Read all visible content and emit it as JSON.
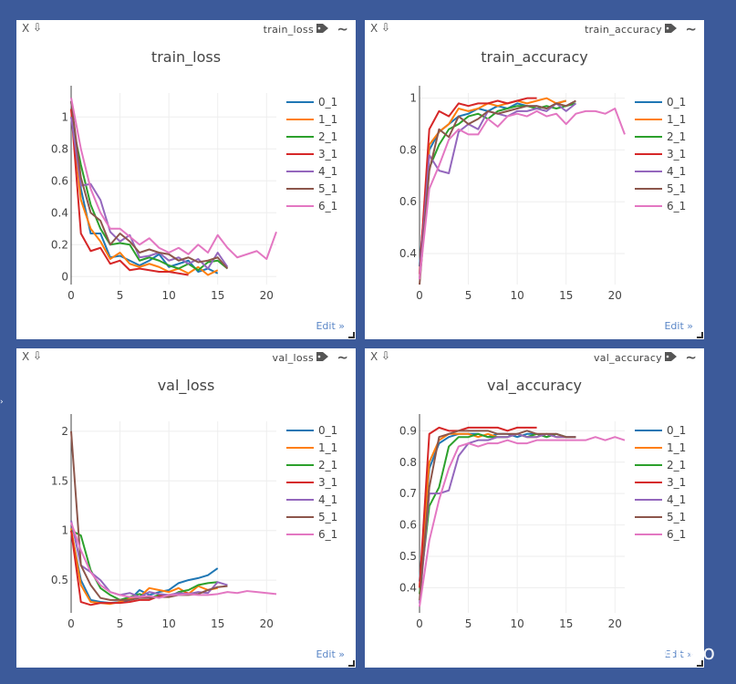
{
  "edit_label": "Edit »",
  "watermark": "知乎 @lego",
  "icons": {
    "close": "close-icon",
    "download": "download-arrow-icon",
    "tag": "tag-icon",
    "wave": "wave-icon"
  },
  "series_colors": [
    "#1f77b4",
    "#ff7f0e",
    "#2ca02c",
    "#d62728",
    "#9467bd",
    "#8c564b",
    "#e377c2"
  ],
  "chart_data": [
    {
      "window_title": "train_loss",
      "type": "line",
      "title": "train_loss",
      "xlim": [
        0,
        21
      ],
      "ylim": [
        -0.05,
        1.15
      ],
      "xticks": [
        "0",
        "5",
        "10",
        "15",
        "20"
      ],
      "xtick_values": [
        0,
        5,
        10,
        15,
        20
      ],
      "yticks": [
        "0",
        "0.2",
        "0.4",
        "0.6",
        "0.8",
        "1"
      ],
      "ytick_values": [
        0,
        0.2,
        0.4,
        0.6,
        0.8,
        1
      ],
      "series": [
        {
          "name": "0_1",
          "values": [
            1.1,
            0.55,
            0.27,
            0.27,
            0.12,
            0.13,
            0.1,
            0.07,
            0.1,
            0.14,
            0.06,
            0.08,
            0.1,
            0.03,
            0.05,
            0.02
          ]
        },
        {
          "name": "1_1",
          "values": [
            1.05,
            0.48,
            0.3,
            0.22,
            0.11,
            0.15,
            0.08,
            0.06,
            0.08,
            0.06,
            0.03,
            0.05,
            0.02,
            0.06,
            0.01,
            0.04
          ]
        },
        {
          "name": "2_1",
          "values": [
            1.0,
            0.7,
            0.45,
            0.3,
            0.2,
            0.21,
            0.2,
            0.1,
            0.12,
            0.1,
            0.07,
            0.05,
            0.08,
            0.04,
            0.09,
            0.1,
            0.05
          ]
        },
        {
          "name": "3_1",
          "values": [
            1.05,
            0.27,
            0.16,
            0.18,
            0.08,
            0.1,
            0.04,
            0.05,
            0.04,
            0.03,
            0.03,
            0.02,
            0.01
          ]
        },
        {
          "name": "4_1",
          "values": [
            1.0,
            0.57,
            0.58,
            0.48,
            0.28,
            0.22,
            0.26,
            0.12,
            0.13,
            0.15,
            0.1,
            0.12,
            0.08,
            0.11,
            0.05,
            0.15,
            0.06
          ]
        },
        {
          "name": "5_1",
          "values": [
            1.1,
            0.62,
            0.4,
            0.35,
            0.2,
            0.27,
            0.22,
            0.15,
            0.17,
            0.15,
            0.14,
            0.1,
            0.12,
            0.09,
            0.1,
            0.12,
            0.05
          ]
        },
        {
          "name": "6_1",
          "values": [
            1.12,
            0.8,
            0.55,
            0.4,
            0.3,
            0.3,
            0.25,
            0.2,
            0.24,
            0.18,
            0.15,
            0.18,
            0.14,
            0.2,
            0.15,
            0.26,
            0.18,
            0.12,
            0.14,
            0.16,
            0.11,
            0.28
          ]
        }
      ]
    },
    {
      "window_title": "train_accuracy",
      "type": "line",
      "title": "train_accuracy",
      "xlim": [
        0,
        21
      ],
      "ylim": [
        0.28,
        1.02
      ],
      "xticks": [
        "0",
        "5",
        "10",
        "15",
        "20"
      ],
      "xtick_values": [
        0,
        5,
        10,
        15,
        20
      ],
      "yticks": [
        "0.4",
        "0.6",
        "0.8",
        "1"
      ],
      "ytick_values": [
        0.4,
        0.6,
        0.8,
        1
      ],
      "series": [
        {
          "name": "0_1",
          "values": [
            0.35,
            0.8,
            0.87,
            0.9,
            0.93,
            0.94,
            0.96,
            0.95,
            0.97,
            0.96,
            0.98,
            0.97,
            0.97,
            0.96,
            0.98,
            0.99
          ]
        },
        {
          "name": "1_1",
          "values": [
            0.3,
            0.82,
            0.87,
            0.9,
            0.96,
            0.95,
            0.96,
            0.98,
            0.97,
            0.98,
            0.99,
            0.98,
            0.99,
            1.0,
            0.98,
            0.99
          ]
        },
        {
          "name": "2_1",
          "values": [
            0.3,
            0.73,
            0.82,
            0.88,
            0.9,
            0.93,
            0.94,
            0.92,
            0.95,
            0.96,
            0.97,
            0.97,
            0.96,
            0.97,
            0.96,
            0.97,
            0.98
          ]
        },
        {
          "name": "3_1",
          "values": [
            0.32,
            0.88,
            0.95,
            0.93,
            0.98,
            0.97,
            0.98,
            0.98,
            0.99,
            0.98,
            0.99,
            1.0,
            1.0
          ]
        },
        {
          "name": "4_1",
          "values": [
            0.3,
            0.78,
            0.72,
            0.71,
            0.87,
            0.9,
            0.88,
            0.95,
            0.94,
            0.93,
            0.95,
            0.95,
            0.96,
            0.95,
            0.98,
            0.95,
            0.98
          ]
        },
        {
          "name": "5_1",
          "values": [
            0.28,
            0.72,
            0.88,
            0.85,
            0.93,
            0.9,
            0.92,
            0.95,
            0.94,
            0.95,
            0.96,
            0.97,
            0.97,
            0.96,
            0.98,
            0.97,
            0.99
          ]
        },
        {
          "name": "6_1",
          "values": [
            0.3,
            0.65,
            0.74,
            0.84,
            0.88,
            0.86,
            0.86,
            0.92,
            0.89,
            0.93,
            0.94,
            0.93,
            0.95,
            0.93,
            0.94,
            0.9,
            0.94,
            0.95,
            0.95,
            0.94,
            0.96,
            0.86
          ]
        }
      ]
    },
    {
      "window_title": "val_loss",
      "type": "line",
      "title": "val_loss",
      "xlim": [
        0,
        21
      ],
      "ylim": [
        0.17,
        2.1
      ],
      "xticks": [
        "0",
        "5",
        "10",
        "15",
        "20"
      ],
      "xtick_values": [
        0,
        5,
        10,
        15,
        20
      ],
      "yticks": [
        "0.5",
        "1",
        "1.5",
        "2"
      ],
      "ytick_values": [
        0.5,
        1,
        1.5,
        2
      ],
      "series": [
        {
          "name": "0_1",
          "values": [
            1.0,
            0.5,
            0.3,
            0.28,
            0.27,
            0.28,
            0.3,
            0.4,
            0.35,
            0.38,
            0.4,
            0.47,
            0.5,
            0.52,
            0.55,
            0.62
          ]
        },
        {
          "name": "1_1",
          "values": [
            1.02,
            0.45,
            0.28,
            0.27,
            0.26,
            0.28,
            0.32,
            0.33,
            0.42,
            0.4,
            0.38,
            0.42,
            0.36,
            0.44,
            0.4,
            0.42
          ]
        },
        {
          "name": "2_1",
          "values": [
            1.0,
            0.95,
            0.6,
            0.42,
            0.35,
            0.3,
            0.33,
            0.36,
            0.32,
            0.35,
            0.33,
            0.38,
            0.4,
            0.45,
            0.47,
            0.48
          ]
        },
        {
          "name": "3_1",
          "values": [
            1.0,
            0.28,
            0.25,
            0.27,
            0.27,
            0.27,
            0.28,
            0.3,
            0.3,
            0.34,
            0.35,
            0.36,
            0.37
          ]
        },
        {
          "name": "4_1",
          "values": [
            1.1,
            0.65,
            0.58,
            0.5,
            0.38,
            0.35,
            0.37,
            0.33,
            0.38,
            0.36,
            0.35,
            0.37,
            0.36,
            0.38,
            0.37,
            0.48,
            0.45
          ]
        },
        {
          "name": "5_1",
          "values": [
            2.0,
            0.65,
            0.45,
            0.32,
            0.3,
            0.3,
            0.3,
            0.32,
            0.32,
            0.33,
            0.33,
            0.35,
            0.35,
            0.36,
            0.4,
            0.43,
            0.44
          ]
        },
        {
          "name": "6_1",
          "values": [
            1.08,
            0.8,
            0.58,
            0.45,
            0.38,
            0.35,
            0.33,
            0.33,
            0.34,
            0.32,
            0.35,
            0.35,
            0.36,
            0.35,
            0.35,
            0.36,
            0.38,
            0.37,
            0.39,
            0.38,
            0.37,
            0.36
          ]
        }
      ]
    },
    {
      "window_title": "val_accuracy",
      "type": "line",
      "title": "val_accuracy",
      "xlim": [
        0,
        21
      ],
      "ylim": [
        0.32,
        0.93
      ],
      "xticks": [
        "0",
        "5",
        "10",
        "15",
        "20"
      ],
      "xtick_values": [
        0,
        5,
        10,
        15,
        20
      ],
      "yticks": [
        "0.4",
        "0.5",
        "0.6",
        "0.7",
        "0.8",
        "0.9"
      ],
      "ytick_values": [
        0.4,
        0.5,
        0.6,
        0.7,
        0.8,
        0.9
      ],
      "series": [
        {
          "name": "0_1",
          "values": [
            0.42,
            0.78,
            0.86,
            0.88,
            0.89,
            0.89,
            0.89,
            0.88,
            0.89,
            0.89,
            0.88,
            0.89,
            0.89,
            0.88,
            0.89,
            0.88,
            0.88
          ]
        },
        {
          "name": "1_1",
          "values": [
            0.4,
            0.8,
            0.87,
            0.89,
            0.89,
            0.89,
            0.88,
            0.89,
            0.88,
            0.88,
            0.89,
            0.88,
            0.88,
            0.89,
            0.88,
            0.88
          ]
        },
        {
          "name": "2_1",
          "values": [
            0.38,
            0.66,
            0.72,
            0.85,
            0.88,
            0.88,
            0.89,
            0.88,
            0.88,
            0.88,
            0.89,
            0.88,
            0.89,
            0.88,
            0.89,
            0.88
          ]
        },
        {
          "name": "3_1",
          "values": [
            0.4,
            0.89,
            0.91,
            0.9,
            0.9,
            0.91,
            0.91,
            0.91,
            0.91,
            0.9,
            0.91,
            0.91,
            0.91
          ]
        },
        {
          "name": "4_1",
          "values": [
            0.35,
            0.7,
            0.7,
            0.71,
            0.82,
            0.86,
            0.87,
            0.87,
            0.88,
            0.88,
            0.89,
            0.88,
            0.88,
            0.89,
            0.88,
            0.88,
            0.88
          ]
        },
        {
          "name": "5_1",
          "values": [
            0.36,
            0.72,
            0.88,
            0.89,
            0.9,
            0.9,
            0.9,
            0.9,
            0.89,
            0.89,
            0.89,
            0.9,
            0.89,
            0.89,
            0.89,
            0.88,
            0.88
          ]
        },
        {
          "name": "6_1",
          "values": [
            0.34,
            0.55,
            0.68,
            0.78,
            0.85,
            0.86,
            0.85,
            0.86,
            0.86,
            0.87,
            0.86,
            0.86,
            0.87,
            0.87,
            0.87,
            0.87,
            0.87,
            0.87,
            0.88,
            0.87,
            0.88,
            0.87
          ]
        }
      ]
    }
  ]
}
